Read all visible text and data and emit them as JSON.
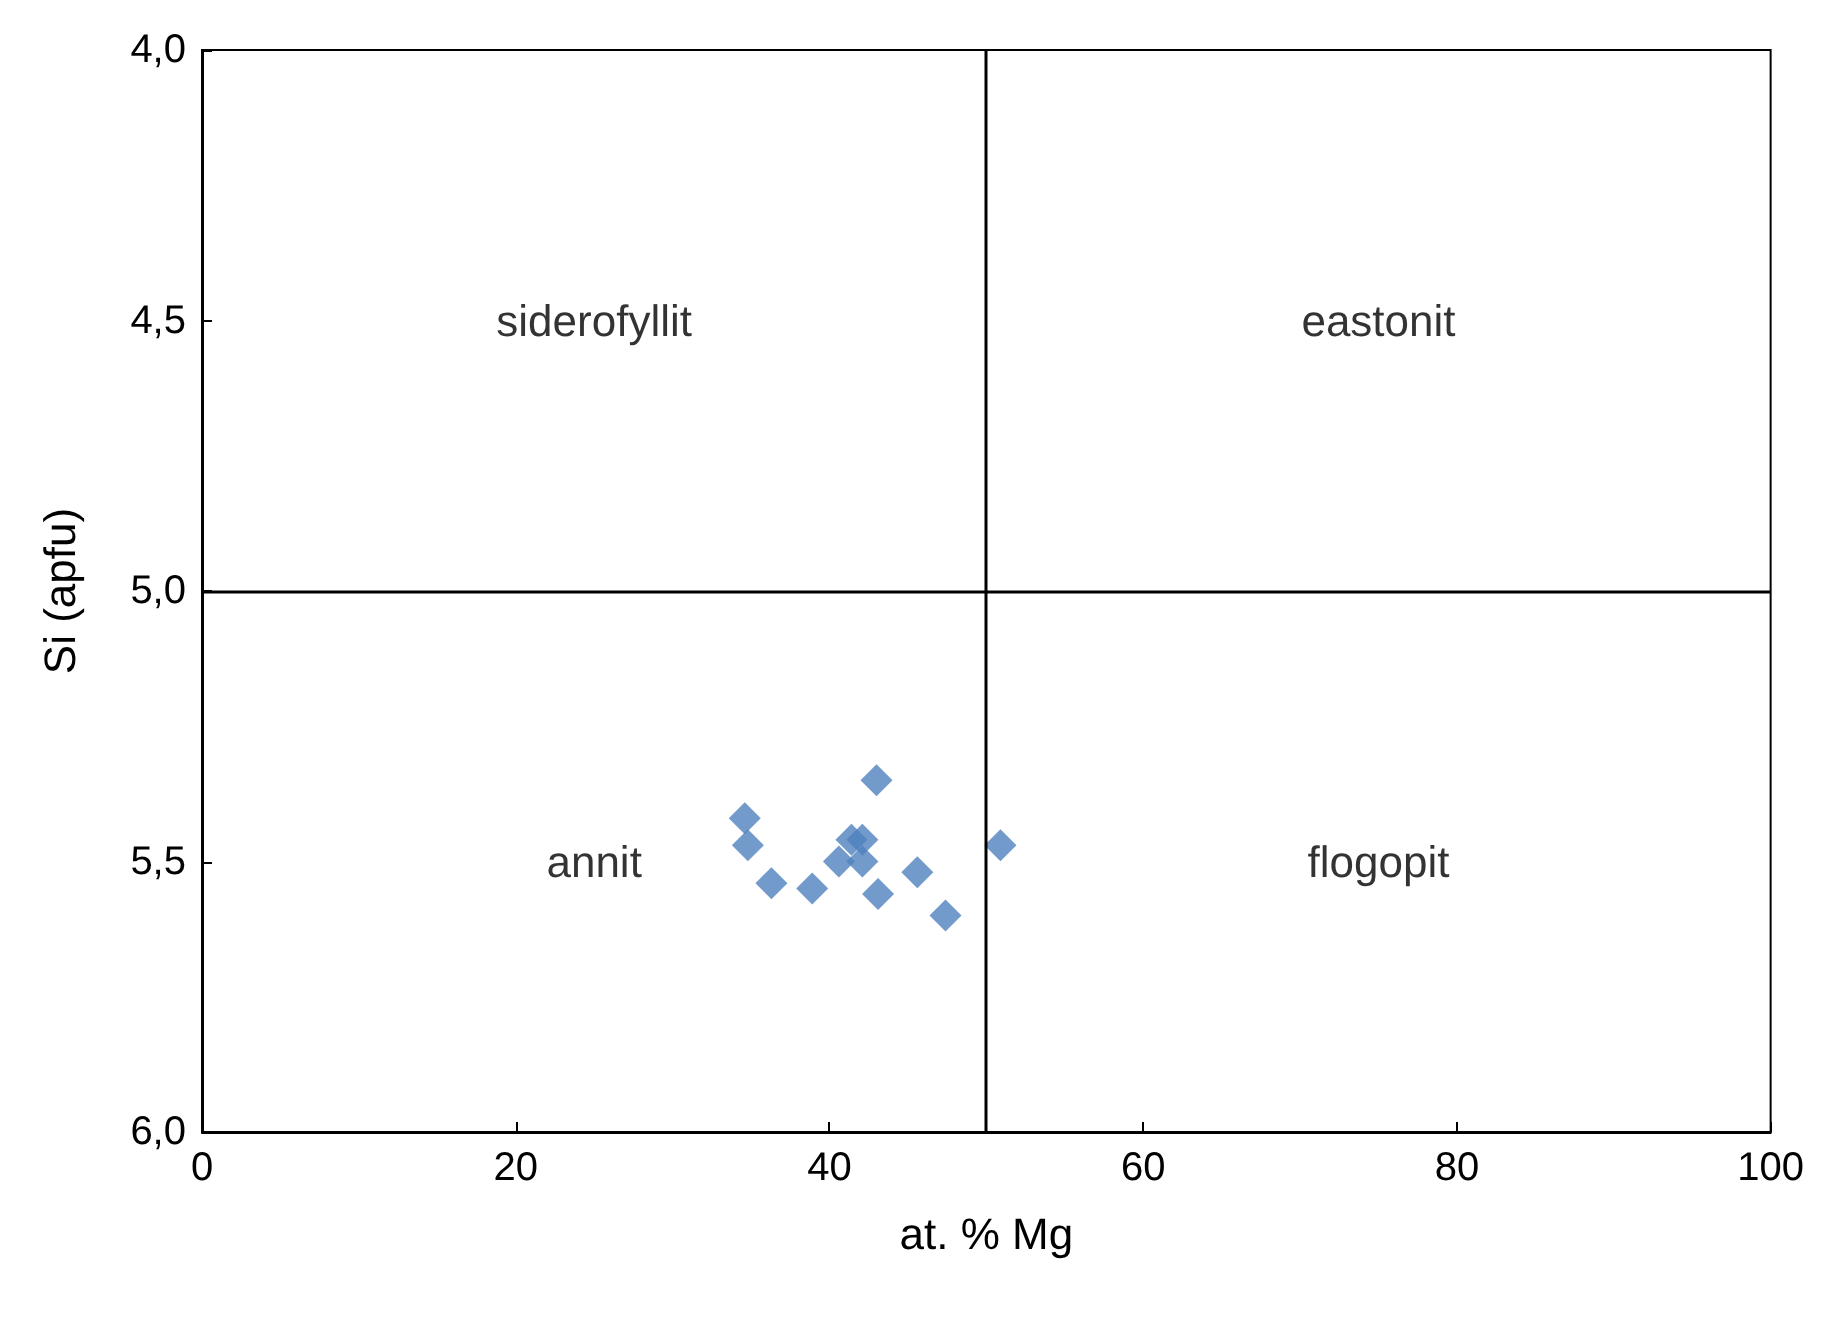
{
  "chart_data": {
    "type": "scatter",
    "xlabel": "at. % Mg",
    "ylabel": "Si (apfu)",
    "x": [
      34.6,
      34.8,
      36.3,
      38.9,
      43.0,
      41.4,
      42.1,
      40.6,
      42.1,
      43.1,
      45.6,
      47.4,
      50.9
    ],
    "series": [
      {
        "color": "#4f81bd",
        "values": [
          5.42,
          5.47,
          5.54,
          5.55,
          5.35,
          5.46,
          5.46,
          5.5,
          5.5,
          5.56,
          5.52,
          5.6,
          5.47
        ]
      }
    ],
    "marker": "diamond",
    "grid": false,
    "xlim": [
      0,
      100
    ],
    "xticks": [
      0,
      20,
      40,
      60,
      80,
      100
    ],
    "ylim": [
      6,
      4
    ],
    "yticks": [
      {
        "value": 4,
        "label": "4,0"
      },
      {
        "value": 4.5,
        "label": "4,5"
      },
      {
        "value": 5,
        "label": "5,0"
      },
      {
        "value": 5.5,
        "label": "5,5"
      },
      {
        "value": 6,
        "label": "6,0"
      }
    ],
    "ref_lines": [
      {
        "axis": "x",
        "value": 50,
        "color": "#000000"
      },
      {
        "axis": "y",
        "value": 5,
        "color": "#000000"
      }
    ],
    "annotations": [
      "siderofyllit",
      "eastonit",
      "annit",
      "flogopit"
    ]
  }
}
